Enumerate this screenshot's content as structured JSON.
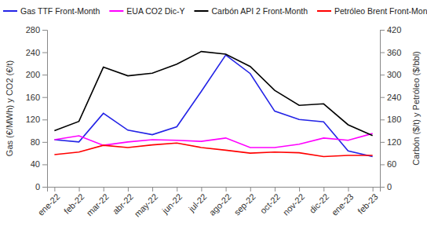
{
  "chart_data": {
    "type": "line",
    "y_label": "Gas (€/MWh) y CO2 (€/t)",
    "y2_label": "Carbón ($/t) y Petróleo ($/bbl)",
    "categories": [
      "ene-22",
      "feb-22",
      "mar-22",
      "abr-22",
      "may-22",
      "jun-22",
      "jul-22",
      "ago-22",
      "sep-22",
      "oct-22",
      "nov-22",
      "dic-22",
      "ene-23",
      "feb-23"
    ],
    "series": [
      {
        "name": "Gas TTF Front-Month",
        "color": "#2323e6",
        "values": [
          84,
          80,
          131,
          101,
          93,
          107,
          170,
          235,
          202,
          135,
          120,
          116,
          64,
          54
        ]
      },
      {
        "name": "EUA CO2 Dic-Y",
        "color": "#ff00ff",
        "values": [
          84,
          91,
          74,
          80,
          84,
          83,
          81,
          87,
          70,
          70,
          76,
          87,
          83,
          95
        ]
      },
      {
        "name": "Carbón API 2 Front-Month",
        "color": "#000000",
        "axis": "y2",
        "values": [
          150,
          175,
          320,
          297,
          304,
          328,
          362,
          355,
          322,
          258,
          218,
          222,
          166,
          137
        ]
      },
      {
        "name": "Petróleo Brent Front-Month",
        "color": "#ff0000",
        "axis": "y2",
        "values": [
          86,
          93,
          111,
          105,
          112,
          117,
          105,
          98,
          90,
          93,
          91,
          81,
          84,
          84
        ]
      }
    ],
    "ylim": [
      0,
      280
    ],
    "yticks": [
      0,
      40,
      80,
      120,
      160,
      200,
      240,
      280
    ],
    "y2lim": [
      0,
      420
    ],
    "y2ticks": [
      0,
      60,
      120,
      180,
      240,
      300,
      360,
      420
    ],
    "legend": "top",
    "grid": false
  }
}
